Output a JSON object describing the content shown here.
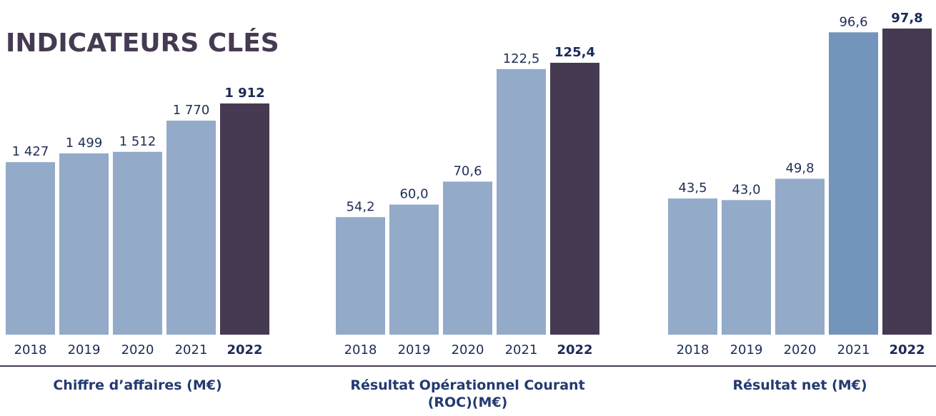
{
  "title": "INDICATEURS CLÉS",
  "chart_data": [
    {
      "type": "bar",
      "title": "Chiffre d’affaires (M€)",
      "categories": [
        "2018",
        "2019",
        "2020",
        "2021",
        "2022"
      ],
      "values": [
        1427,
        1499,
        1512,
        1770,
        1912
      ],
      "value_labels": [
        "1 427",
        "1 499",
        "1 512",
        "1 770",
        "1 912"
      ],
      "colors": [
        "#93aac8",
        "#93aac8",
        "#93aac8",
        "#93aac8",
        "#463a52"
      ]
    },
    {
      "type": "bar",
      "title": "Résultat Opérationnel Courant (ROC)(M€)",
      "categories": [
        "2018",
        "2019",
        "2020",
        "2021",
        "2022"
      ],
      "values": [
        54.2,
        60.0,
        70.6,
        122.5,
        125.4
      ],
      "value_labels": [
        "54,2",
        "60,0",
        "70,6",
        "122,5",
        "125,4"
      ],
      "colors": [
        "#93aac8",
        "#93aac8",
        "#93aac8",
        "#93aac8",
        "#463a52"
      ]
    },
    {
      "type": "bar",
      "title": "Résultat net (M€)",
      "categories": [
        "2018",
        "2019",
        "2020",
        "2021",
        "2022"
      ],
      "values": [
        43.5,
        43.0,
        49.8,
        96.6,
        97.8
      ],
      "value_labels": [
        "43,5",
        "43,0",
        "49,8",
        "96,6",
        "97,8"
      ],
      "colors": [
        "#93aac8",
        "#93aac8",
        "#93aac8",
        "#7395bb",
        "#463a52"
      ]
    }
  ]
}
